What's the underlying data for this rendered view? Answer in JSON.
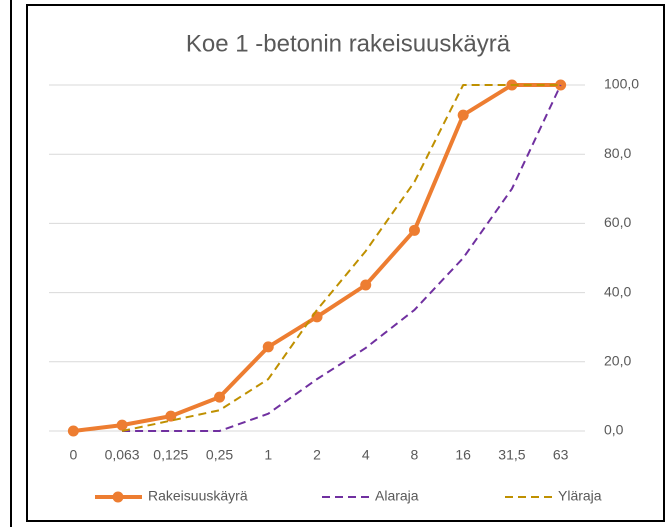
{
  "chart_data": {
    "type": "line",
    "title": "Koe 1 -betonin rakeisuuskäyrä",
    "categories": [
      "0",
      "0,063",
      "0,125",
      "0,25",
      "1",
      "2",
      "4",
      "8",
      "16",
      "31,5",
      "63"
    ],
    "series": [
      {
        "name": "Rakeisuuskäyrä",
        "color": "#ED7D31",
        "dash": false,
        "markers": true,
        "values": [
          0,
          1.7,
          4.3,
          9.8,
          24.3,
          33,
          42.2,
          58,
          91.3,
          100,
          100
        ]
      },
      {
        "name": "Alaraja",
        "color": "#7030A0",
        "dash": true,
        "markers": false,
        "values": [
          null,
          0,
          0,
          0,
          5,
          15,
          24,
          35,
          50,
          70,
          100
        ]
      },
      {
        "name": "Yläraja",
        "color": "#BF9000",
        "dash": true,
        "markers": false,
        "values": [
          null,
          0,
          3,
          6,
          15,
          35,
          52,
          72,
          100,
          100,
          100
        ]
      }
    ],
    "ylim": [
      0,
      100
    ],
    "yticks": [
      {
        "value": 0,
        "label": "0,0"
      },
      {
        "value": 20,
        "label": "20,0"
      },
      {
        "value": 40,
        "label": "40,0"
      },
      {
        "value": 60,
        "label": "60,0"
      },
      {
        "value": 80,
        "label": "80,0"
      },
      {
        "value": 100,
        "label": "100,0"
      }
    ],
    "grid": true,
    "legend": "bottom"
  }
}
